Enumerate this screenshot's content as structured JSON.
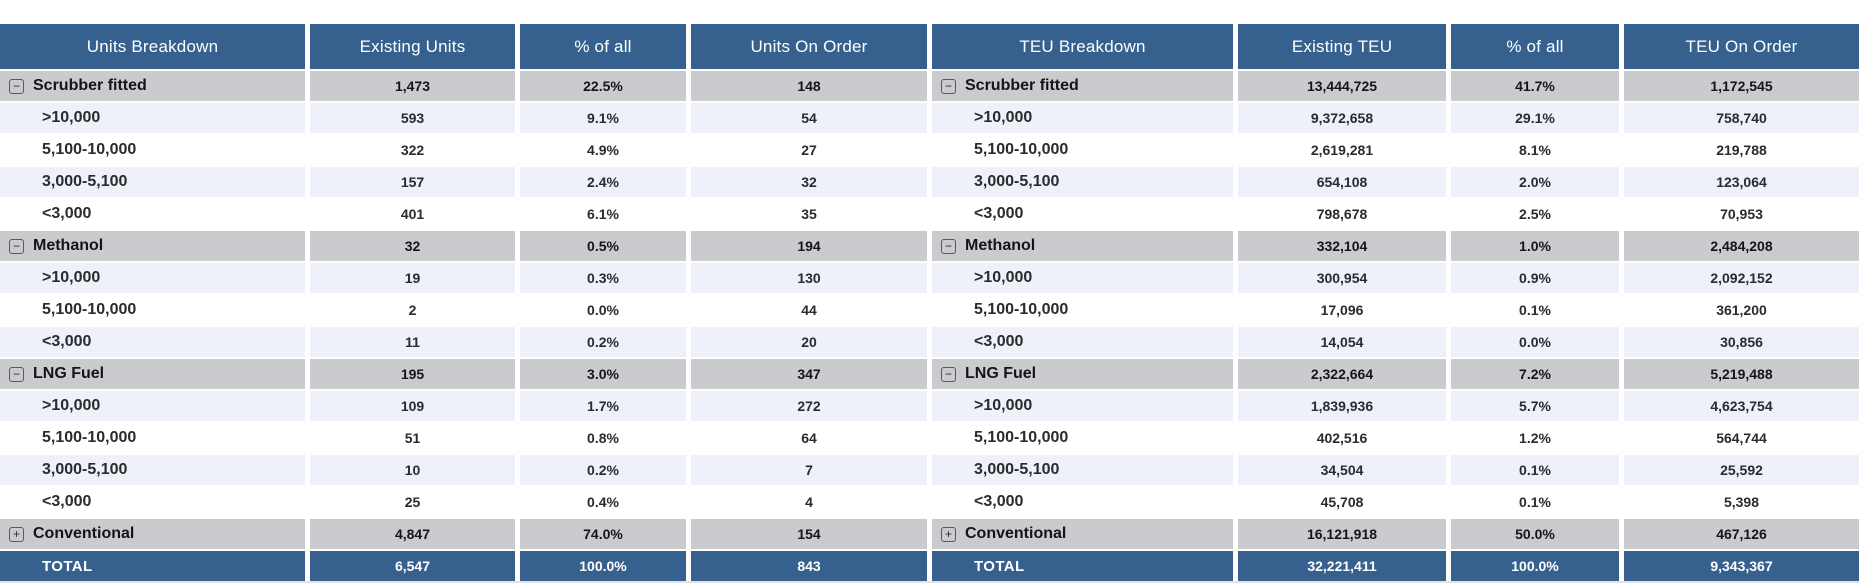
{
  "colors": {
    "header_bg": "#36618E",
    "total_bg": "#36618E",
    "group_row_bg": "#C9CBCE",
    "tint_row_bg": "#EEF0FA",
    "white_row_bg": "#FFFFFF",
    "header_text": "#FFFFFF",
    "data_text": "#2B2B2B"
  },
  "icons": {
    "collapse": "−",
    "expand": "+"
  },
  "table": {
    "headers": [
      "Units Breakdown",
      "Existing Units",
      "% of all",
      "Units On Order",
      "TEU Breakdown",
      "Existing TEU",
      "% of all",
      "TEU On Order"
    ],
    "rows": [
      {
        "kind": "group",
        "expanded": true,
        "label": "Scrubber fitted",
        "units": [
          "1,473",
          "22.5%",
          "148"
        ],
        "teu": [
          "13,444,725",
          "41.7%",
          "1,172,545"
        ]
      },
      {
        "kind": "child",
        "label": ">10,000",
        "units": [
          "593",
          "9.1%",
          "54"
        ],
        "teu": [
          "9,372,658",
          "29.1%",
          "758,740"
        ]
      },
      {
        "kind": "child",
        "label": "5,100-10,000",
        "units": [
          "322",
          "4.9%",
          "27"
        ],
        "teu": [
          "2,619,281",
          "8.1%",
          "219,788"
        ]
      },
      {
        "kind": "child",
        "label": "3,000-5,100",
        "units": [
          "157",
          "2.4%",
          "32"
        ],
        "teu": [
          "654,108",
          "2.0%",
          "123,064"
        ]
      },
      {
        "kind": "child",
        "label": "<3,000",
        "units": [
          "401",
          "6.1%",
          "35"
        ],
        "teu": [
          "798,678",
          "2.5%",
          "70,953"
        ]
      },
      {
        "kind": "group",
        "expanded": true,
        "label": "Methanol",
        "units": [
          "32",
          "0.5%",
          "194"
        ],
        "teu": [
          "332,104",
          "1.0%",
          "2,484,208"
        ]
      },
      {
        "kind": "child",
        "label": ">10,000",
        "units": [
          "19",
          "0.3%",
          "130"
        ],
        "teu": [
          "300,954",
          "0.9%",
          "2,092,152"
        ]
      },
      {
        "kind": "child",
        "label": "5,100-10,000",
        "units": [
          "2",
          "0.0%",
          "44"
        ],
        "teu": [
          "17,096",
          "0.1%",
          "361,200"
        ]
      },
      {
        "kind": "child",
        "label": "<3,000",
        "units": [
          "11",
          "0.2%",
          "20"
        ],
        "teu": [
          "14,054",
          "0.0%",
          "30,856"
        ]
      },
      {
        "kind": "group",
        "expanded": true,
        "label": "LNG Fuel",
        "units": [
          "195",
          "3.0%",
          "347"
        ],
        "teu": [
          "2,322,664",
          "7.2%",
          "5,219,488"
        ]
      },
      {
        "kind": "child",
        "label": ">10,000",
        "units": [
          "109",
          "1.7%",
          "272"
        ],
        "teu": [
          "1,839,936",
          "5.7%",
          "4,623,754"
        ]
      },
      {
        "kind": "child",
        "label": "5,100-10,000",
        "units": [
          "51",
          "0.8%",
          "64"
        ],
        "teu": [
          "402,516",
          "1.2%",
          "564,744"
        ]
      },
      {
        "kind": "child",
        "label": "3,000-5,100",
        "units": [
          "10",
          "0.2%",
          "7"
        ],
        "teu": [
          "34,504",
          "0.1%",
          "25,592"
        ]
      },
      {
        "kind": "child",
        "label": "<3,000",
        "units": [
          "25",
          "0.4%",
          "4"
        ],
        "teu": [
          "45,708",
          "0.1%",
          "5,398"
        ]
      },
      {
        "kind": "group",
        "expanded": false,
        "label": "Conventional",
        "units": [
          "4,847",
          "74.0%",
          "154"
        ],
        "teu": [
          "16,121,918",
          "50.0%",
          "467,126"
        ]
      },
      {
        "kind": "total",
        "label": "TOTAL",
        "units": [
          "6,547",
          "100.0%",
          "843"
        ],
        "teu": [
          "32,221,411",
          "100.0%",
          "9,343,367"
        ]
      }
    ]
  }
}
